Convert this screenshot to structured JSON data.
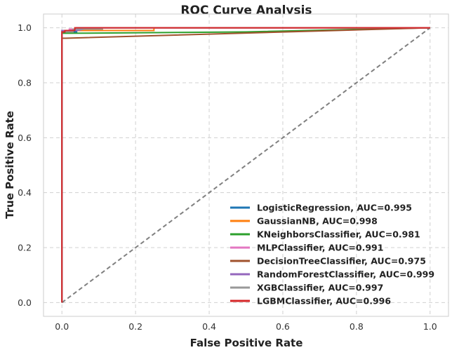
{
  "chart_data": {
    "type": "line",
    "title": "ROC Curve Analysis",
    "xlabel": "False Positive Rate",
    "ylabel": "True Positive Rate",
    "xlim": [
      -0.05,
      1.05
    ],
    "ylim": [
      -0.05,
      1.05
    ],
    "xticks": [
      0.0,
      0.2,
      0.4,
      0.6,
      0.8,
      1.0
    ],
    "yticks": [
      0.0,
      0.2,
      0.4,
      0.6,
      0.8,
      1.0
    ],
    "xtick_labels": [
      "0.0",
      "0.2",
      "0.4",
      "0.6",
      "0.8",
      "1.0"
    ],
    "ytick_labels": [
      "0.0",
      "0.2",
      "0.4",
      "0.6",
      "0.8",
      "1.0"
    ],
    "grid": true,
    "legend_position": "lower-right",
    "diagonal": {
      "x": [
        0,
        1
      ],
      "y": [
        0,
        1
      ],
      "color": "#808080",
      "style": "dashed"
    },
    "series": [
      {
        "name": "LogisticRegression, AUC=0.995",
        "color": "#1f77b4",
        "x": [
          0,
          0,
          0.01,
          0.04,
          0.04,
          1.0
        ],
        "y": [
          0,
          0.985,
          0.985,
          0.985,
          1.0,
          1.0
        ]
      },
      {
        "name": "GaussianNB, AUC=0.998",
        "color": "#ff7f0e",
        "x": [
          0,
          0,
          0.25,
          0.25,
          1.0
        ],
        "y": [
          0,
          0.99,
          0.99,
          1.0,
          1.0
        ]
      },
      {
        "name": "KNeighborsClassifier, AUC=0.981",
        "color": "#2ca02c",
        "x": [
          0,
          0,
          0.02,
          0.5,
          1.0
        ],
        "y": [
          0,
          0.98,
          0.98,
          0.985,
          1.0
        ]
      },
      {
        "name": "MLPClassifier, AUC=0.991",
        "color": "#e377c2",
        "x": [
          0,
          0,
          0.02,
          0.02,
          0.06,
          0.06,
          1.0
        ],
        "y": [
          0,
          0.99,
          0.99,
          0.995,
          0.995,
          1.0,
          1.0
        ]
      },
      {
        "name": "DecisionTreeClassifier, AUC=0.975",
        "color": "#a0522d",
        "x": [
          0,
          0,
          0.01,
          1.0
        ],
        "y": [
          0,
          0.962,
          0.962,
          1.0
        ]
      },
      {
        "name": "RandomForestClassifier, AUC=0.999",
        "color": "#9467bd",
        "x": [
          0,
          0,
          0.04,
          0.06,
          0.06,
          1.0
        ],
        "y": [
          0,
          0.99,
          0.99,
          0.995,
          1.0,
          1.0
        ]
      },
      {
        "name": "XGBClassifier, AUC=0.997",
        "color": "#999999",
        "x": [
          0,
          0,
          0.03,
          0.03,
          0.11,
          0.11,
          1.0
        ],
        "y": [
          0,
          0.985,
          0.985,
          0.995,
          0.995,
          1.0,
          1.0
        ]
      },
      {
        "name": "LGBMClassifier, AUC=0.996",
        "color": "#d62728",
        "x": [
          0,
          0,
          0.008,
          0.008,
          0.035,
          0.035,
          1.0
        ],
        "y": [
          0,
          0.985,
          0.985,
          0.99,
          0.99,
          1.0,
          1.0
        ]
      }
    ]
  }
}
